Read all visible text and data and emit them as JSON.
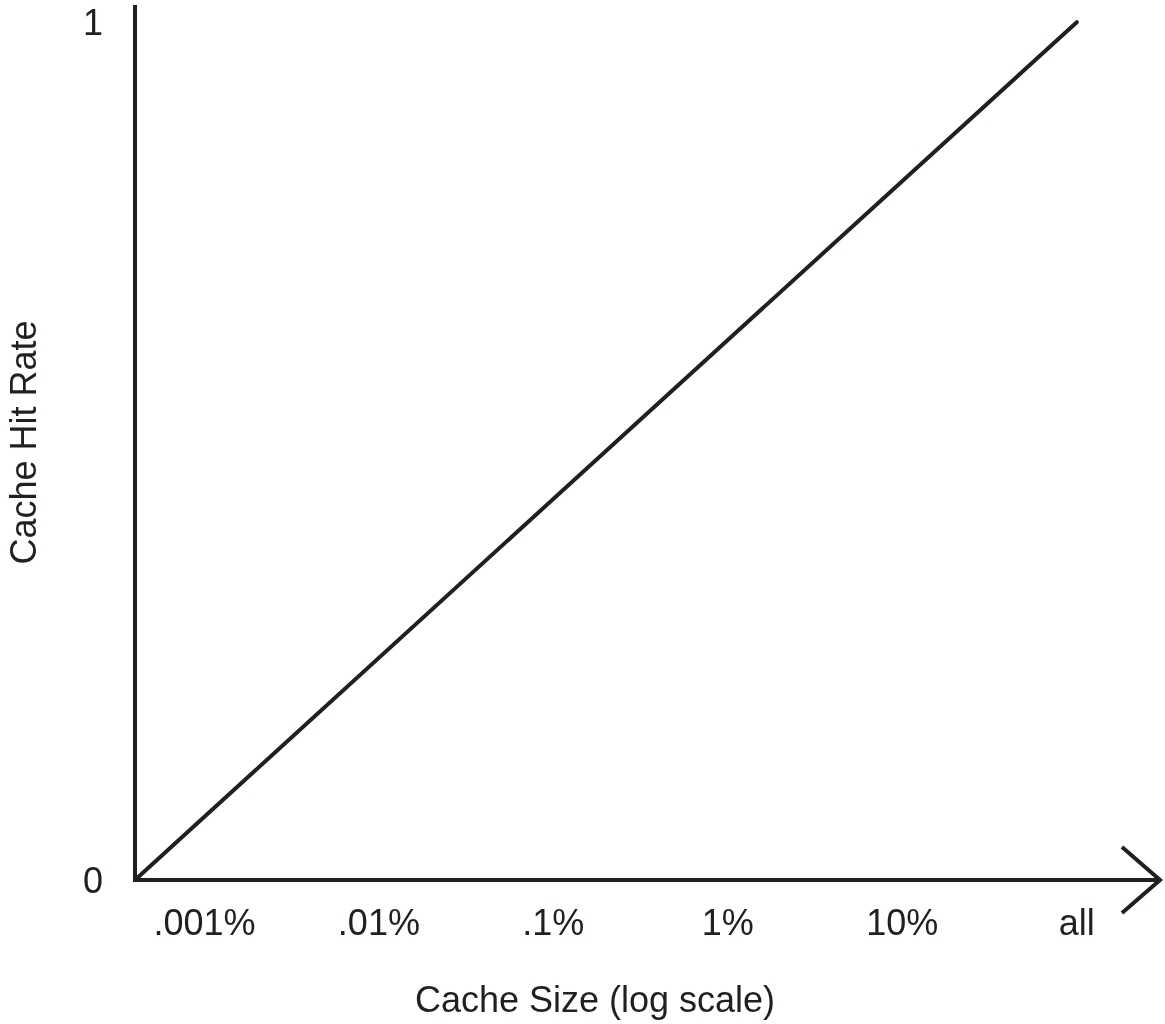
{
  "chart_data": {
    "type": "line",
    "xlabel": "Cache Size (log scale)",
    "ylabel": "Cache Hit Rate",
    "log": "x",
    "xlim": [
      0.0004,
      300
    ],
    "ylim": [
      0,
      1.02
    ],
    "xticks": [
      {
        "value": 0.001,
        "label": ".001%"
      },
      {
        "value": 0.01,
        "label": ".01%"
      },
      {
        "value": 0.1,
        "label": ".1%"
      },
      {
        "value": 1,
        "label": "1%"
      },
      {
        "value": 10,
        "label": "10%"
      },
      {
        "value": 100,
        "label": "all"
      }
    ],
    "yticks": [
      0,
      1
    ],
    "marker": "none",
    "line_style": "solid",
    "series": [
      {
        "color": "#231f20",
        "x": [
          0.0004,
          100
        ],
        "values": [
          0,
          1
        ]
      }
    ]
  }
}
